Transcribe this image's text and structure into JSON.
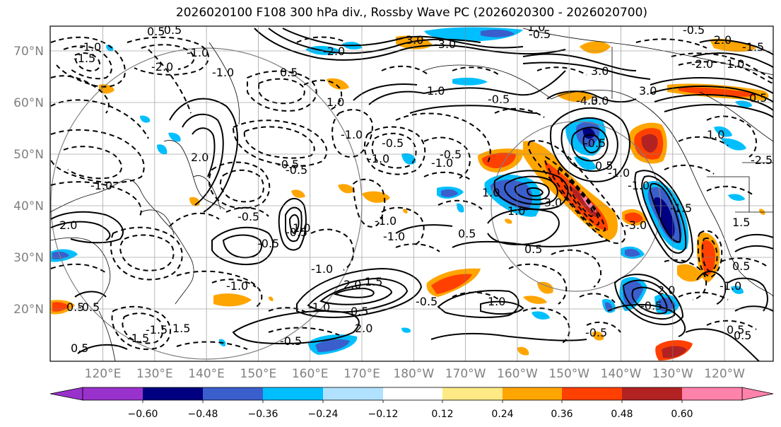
{
  "title": "2026020100 F108 300 hPa div., Rossby Wave PC (2026020300 - 2026020700)",
  "map": {
    "lat_labels": [
      "70°N",
      "60°N",
      "50°N",
      "40°N",
      "30°N",
      "20°N"
    ],
    "lon_labels": [
      "120°E",
      "130°E",
      "140°E",
      "150°E",
      "160°E",
      "170°E",
      "180°W",
      "170°W",
      "160°W",
      "150°W",
      "140°W",
      "130°W",
      "120°W"
    ],
    "contour_labels": [
      "3.0",
      "-2.0",
      "-0.5",
      "-3.0",
      "-1.0",
      "0.5",
      "-4.0",
      "1.0",
      "-0.5",
      "-2.0",
      "-1.0",
      "-1.5",
      "0.5",
      "-0.5",
      "-1.0",
      "-0.5",
      "-1.0",
      "-0.5",
      "0.5",
      "-0.5",
      "-1.5",
      "1.0",
      "0.5",
      "1.5",
      "0.5",
      "-0.5",
      "0.5",
      "-1.0",
      "-3.0",
      "2.0",
      "-1.0",
      "0.5",
      "-1.0",
      "1.0",
      "1.5",
      "-1.5",
      "-0.5",
      "0.5",
      "-1.0",
      "0.5",
      "-1.0",
      "-1.0",
      "-1.0",
      "1.0",
      "2.0",
      "3.0",
      "-2.0",
      "-3.0",
      "2.0",
      "-1.0",
      "-0.5",
      "-1.0",
      "-0.5",
      "1.0",
      "-1.5",
      "3.0",
      "2.0",
      "3.0",
      "0.5",
      "-0.5",
      "-0.5",
      "1.0",
      "-0.5",
      "-1.0",
      "0.5",
      "1.5",
      "-0.5",
      "-0.5",
      "-2.0",
      "-1.5",
      "-2.5",
      "-0.5",
      "-1.0",
      "1.0",
      "0.5",
      "-0.5",
      "2.0",
      "1.0",
      "1.0"
    ]
  },
  "colorbar": {
    "tick_labels": [
      "−0.60",
      "−0.48",
      "−0.36",
      "−0.24",
      "−0.12",
      "0.12",
      "0.24",
      "0.36",
      "0.48",
      "0.60"
    ],
    "colors": [
      "#9932cc",
      "#000080",
      "#3a5fcd",
      "#00bfff",
      "#b0e2ff",
      "#ffffff",
      "#ffe985",
      "#ffa500",
      "#ff4000",
      "#b22222",
      "#ff82ab"
    ]
  }
}
